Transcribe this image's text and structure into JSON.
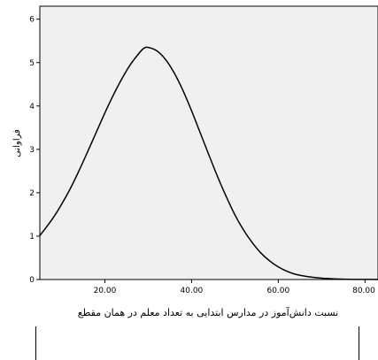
{
  "chart_data": {
    "type": "line",
    "title": "",
    "xlabel": "نسبت دانش‌آموز در مدارس ابتدایی به تعداد معلم در همان مقطع",
    "ylabel": "فراوانی",
    "xlim": [
      5,
      83
    ],
    "ylim": [
      0,
      6.3
    ],
    "x_ticks": [
      20,
      40,
      60,
      80
    ],
    "x_tick_labels": [
      "20.00",
      "40.00",
      "60.00",
      "80.00"
    ],
    "y_ticks": [
      0,
      1,
      2,
      3,
      4,
      5,
      6
    ],
    "y_tick_labels": [
      "0",
      "1",
      "2",
      "3",
      "4",
      "5",
      "6"
    ],
    "grid": false,
    "background": "#f0f0f0",
    "line_color": "#000000",
    "series": [
      {
        "x": [
          5,
          8,
          10,
          12,
          14,
          16,
          18,
          20,
          22,
          24,
          26,
          28,
          29,
          30,
          32,
          34,
          36,
          38,
          40,
          42,
          44,
          46,
          48,
          50,
          52,
          54,
          56,
          58,
          60,
          62,
          64,
          66,
          68,
          70,
          72,
          74,
          76,
          78,
          80,
          83
        ],
        "values": [
          1.01,
          1.41,
          1.73,
          2.09,
          2.5,
          2.94,
          3.39,
          3.84,
          4.26,
          4.64,
          4.97,
          5.23,
          5.33,
          5.35,
          5.27,
          5.07,
          4.76,
          4.36,
          3.89,
          3.38,
          2.87,
          2.37,
          1.91,
          1.49,
          1.14,
          0.85,
          0.61,
          0.43,
          0.29,
          0.19,
          0.12,
          0.08,
          0.05,
          0.03,
          0.02,
          0.01,
          0.005,
          0.003,
          0.002,
          0.001
        ]
      }
    ]
  }
}
